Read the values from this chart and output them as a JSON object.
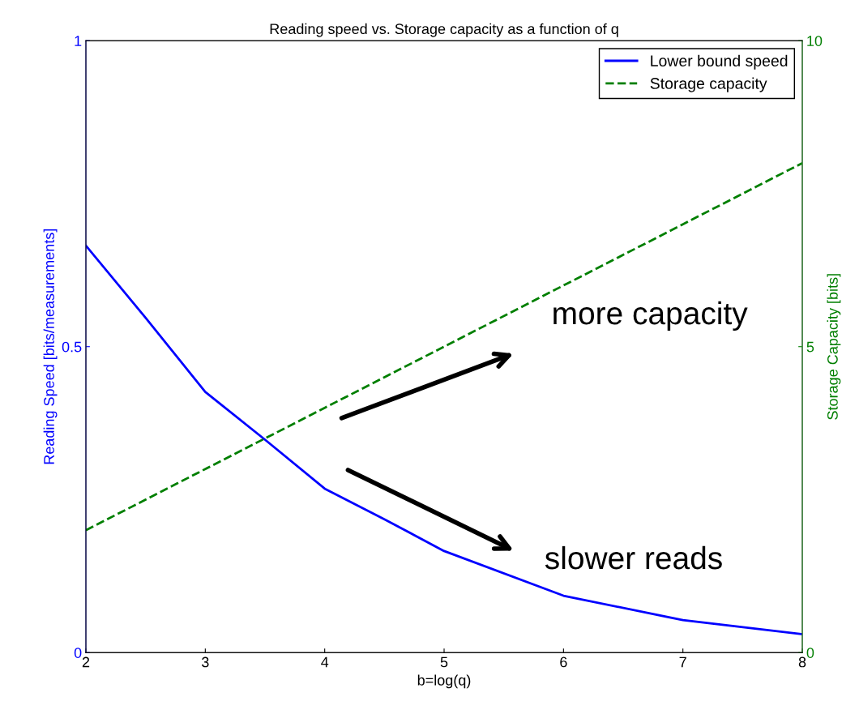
{
  "chart_data": {
    "type": "line",
    "title": "Reading speed vs. Storage capacity as a function of q",
    "xlabel": "b=log(q)",
    "ylabel": "Reading Speed [bits/measurements]",
    "y2label": "Storage Capacity [bits]",
    "x": [
      2,
      2.5,
      3,
      3.5,
      4,
      4.5,
      5,
      6,
      7,
      8
    ],
    "series": [
      {
        "name": "Lower bound speed",
        "color": "#0000ff",
        "line_style": "solid",
        "values": [
          0.665,
          0.547,
          0.426,
          0.348,
          0.268,
          0.218,
          0.166,
          0.093,
          0.053,
          0.03
        ]
      },
      {
        "name": "Storage capacity",
        "color": "#007f00",
        "line_style": "dashed",
        "axis": "y2",
        "values": [
          2,
          2.5,
          3,
          3.5,
          4,
          4.5,
          5,
          6,
          7,
          8
        ]
      }
    ],
    "xlim": [
      2,
      8
    ],
    "xticks": [
      2,
      3,
      4,
      5,
      6,
      7,
      8
    ],
    "ylim": [
      0,
      1
    ],
    "yticks": [
      0,
      0.5,
      1
    ],
    "y2lim": [
      0,
      10
    ],
    "y2ticks": [
      0,
      5,
      10
    ],
    "grid": false,
    "legend": "top right",
    "annotations": [
      "more capacity",
      "slower reads"
    ]
  }
}
